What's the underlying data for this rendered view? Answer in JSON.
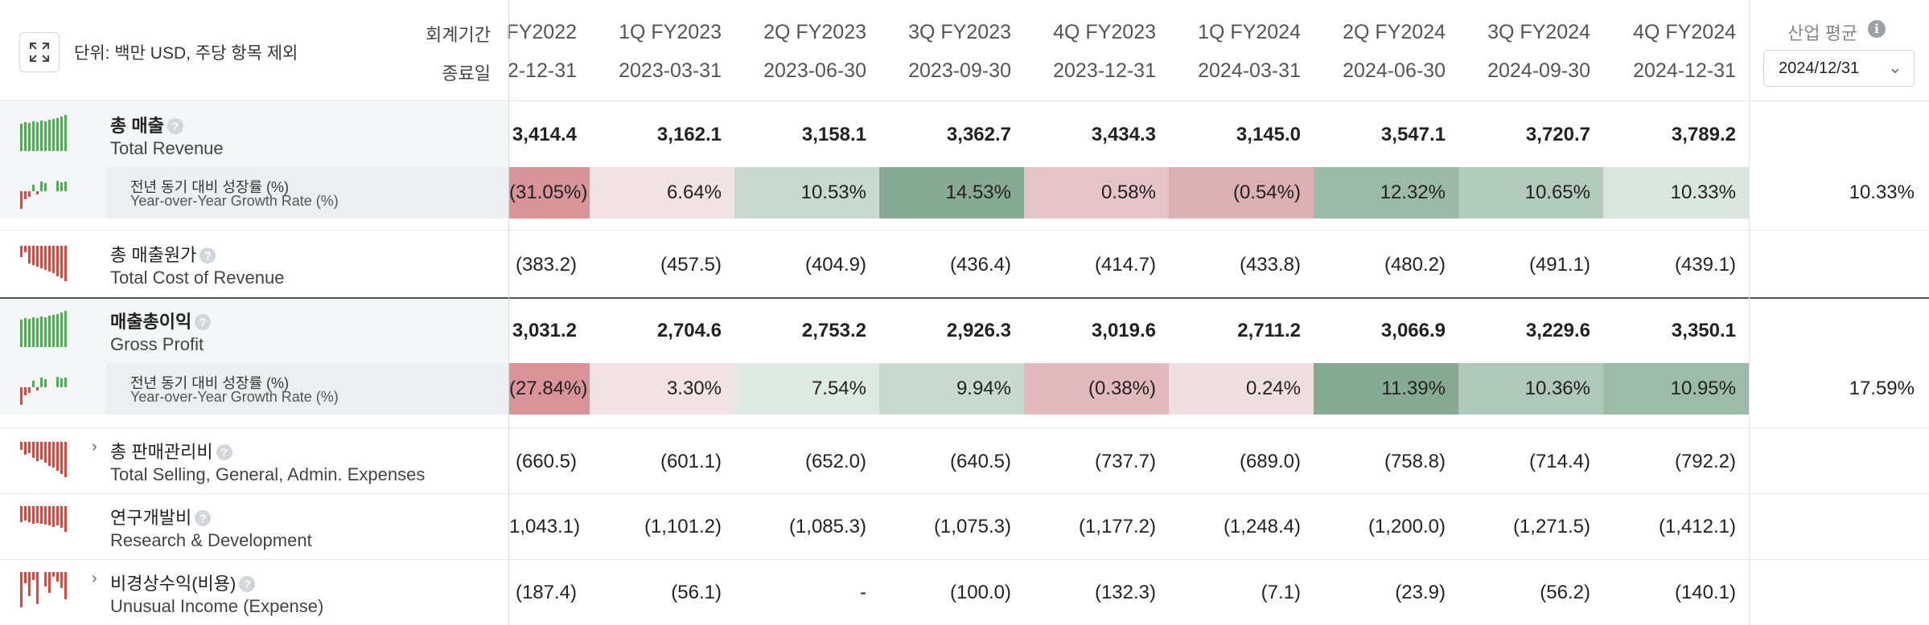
{
  "header": {
    "unit_text": "단위: 백만 USD, 주당 항목 제외",
    "period_label": "회계기간",
    "date_label": "종료일",
    "industry_avg_label": "산업 평균",
    "industry_avg_date": "2024/12/31",
    "expand_icon": "expand-icon",
    "info_icon": "info-icon",
    "chevron_icon": "chevron-down-icon"
  },
  "columns": [
    {
      "period": "FY2022",
      "date": "2-12-31"
    },
    {
      "period": "1Q FY2023",
      "date": "2023-03-31"
    },
    {
      "period": "2Q FY2023",
      "date": "2023-06-30"
    },
    {
      "period": "3Q FY2023",
      "date": "2023-09-30"
    },
    {
      "period": "4Q FY2023",
      "date": "2023-12-31"
    },
    {
      "period": "1Q FY2024",
      "date": "2024-03-31"
    },
    {
      "period": "2Q FY2024",
      "date": "2024-06-30"
    },
    {
      "period": "3Q FY2024",
      "date": "2024-09-30"
    },
    {
      "period": "4Q FY2024",
      "date": "2024-12-31"
    }
  ],
  "colors": {
    "pos_light": "#edf2ef",
    "pos_mid": "#c8d9cf",
    "pos_strong": "#a9c4b4",
    "pos_dark": "#87aa95",
    "neg_light": "#f2e3e5",
    "neg_mid": "#e5c3c7",
    "neg_strong": "#d89498",
    "spark_green": "#4caf50",
    "spark_red": "#e0453d"
  },
  "rows": {
    "revenue": {
      "label_ko": "총 매출",
      "label_en": "Total Revenue",
      "values": [
        "3,414.4",
        "3,162.1",
        "3,158.1",
        "3,362.7",
        "3,434.3",
        "3,145.0",
        "3,547.1",
        "3,720.7",
        "3,789.2"
      ]
    },
    "revenue_growth": {
      "label_ko": "전년 동기 대비 성장률 (%)",
      "label_en": "Year-over-Year Growth Rate (%)",
      "values": [
        "(31.05%)",
        "6.64%",
        "10.53%",
        "14.53%",
        "0.58%",
        "(0.54%)",
        "12.32%",
        "10.65%",
        "10.33%"
      ],
      "industry_avg": "10.33%"
    },
    "cost_of_revenue": {
      "label_ko": "총 매출원가",
      "label_en": "Total Cost of Revenue",
      "values": [
        "(383.2)",
        "(457.5)",
        "(404.9)",
        "(436.4)",
        "(414.7)",
        "(433.8)",
        "(480.2)",
        "(491.1)",
        "(439.1)"
      ]
    },
    "gross_profit": {
      "label_ko": "매출총이익",
      "label_en": "Gross Profit",
      "values": [
        "3,031.2",
        "2,704.6",
        "2,753.2",
        "2,926.3",
        "3,019.6",
        "2,711.2",
        "3,066.9",
        "3,229.6",
        "3,350.1"
      ]
    },
    "gross_growth": {
      "label_ko": "전년 동기 대비 성장률 (%)",
      "label_en": "Year-over-Year Growth Rate (%)",
      "values": [
        "(27.84%)",
        "3.30%",
        "7.54%",
        "9.94%",
        "(0.38%)",
        "0.24%",
        "11.39%",
        "10.36%",
        "10.95%"
      ],
      "industry_avg": "17.59%"
    },
    "sga": {
      "label_ko": "총 판매관리비",
      "label_en": "Total Selling, General, Admin. Expenses",
      "values": [
        "(660.5)",
        "(601.1)",
        "(652.0)",
        "(640.5)",
        "(737.7)",
        "(689.0)",
        "(758.8)",
        "(714.4)",
        "(792.2)"
      ]
    },
    "rnd": {
      "label_ko": "연구개발비",
      "label_en": "Research & Development",
      "values": [
        "1,043.1)",
        "(1,101.2)",
        "(1,085.3)",
        "(1,075.3)",
        "(1,177.2)",
        "(1,248.4)",
        "(1,200.0)",
        "(1,271.5)",
        "(1,412.1)"
      ]
    },
    "unusual": {
      "label_ko": "비경상수익(비용)",
      "label_en": "Unusual Income (Expense)",
      "values": [
        "(187.4)",
        "(56.1)",
        "-",
        "(100.0)",
        "(132.3)",
        "(7.1)",
        "(23.9)",
        "(56.2)",
        "(140.1)"
      ]
    }
  }
}
